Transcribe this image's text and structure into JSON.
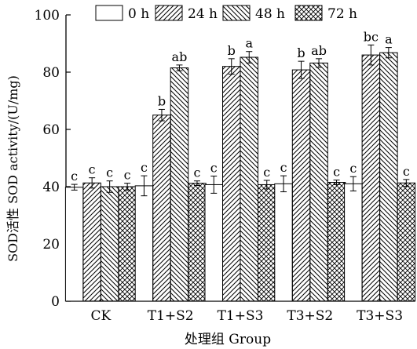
{
  "chart_data": {
    "type": "bar",
    "xlabel": "处理组 Group",
    "ylabel": "SOD活性 SOD activity/(U/mg)",
    "ylim": [
      0,
      100
    ],
    "yticks": [
      0,
      20,
      40,
      60,
      80,
      100
    ],
    "grid": false,
    "legend_position": "top",
    "categories": [
      "CK",
      "T1+S2",
      "T1+S3",
      "T3+S2",
      "T3+S3"
    ],
    "series": [
      {
        "name": "0 h",
        "pattern": "none",
        "values": [
          39.8,
          40.3,
          40.7,
          41.0,
          41.0
        ],
        "errors": [
          1.0,
          3.5,
          3.0,
          2.8,
          2.5
        ],
        "labels": [
          "c",
          "c",
          "c",
          "c",
          "c"
        ]
      },
      {
        "name": "24 h",
        "pattern": "forward-slash",
        "values": [
          41.3,
          65.0,
          82.0,
          80.8,
          86.0
        ],
        "errors": [
          1.8,
          2.0,
          2.7,
          3.0,
          3.5
        ],
        "labels": [
          "c",
          "b",
          "b",
          "b",
          "bc"
        ]
      },
      {
        "name": "48 h",
        "pattern": "back-slash",
        "values": [
          40.0,
          81.5,
          85.2,
          83.2,
          86.8
        ],
        "errors": [
          2.0,
          1.0,
          2.0,
          1.5,
          1.8
        ],
        "labels": [
          "c",
          "ab",
          "a",
          "ab",
          "a"
        ]
      },
      {
        "name": "72 h",
        "pattern": "crosshatch",
        "values": [
          40.0,
          41.2,
          40.7,
          41.5,
          41.3
        ],
        "errors": [
          1.2,
          0.8,
          1.5,
          0.8,
          1.2
        ],
        "labels": [
          "c",
          "c",
          "c",
          "c",
          "c"
        ]
      }
    ]
  }
}
